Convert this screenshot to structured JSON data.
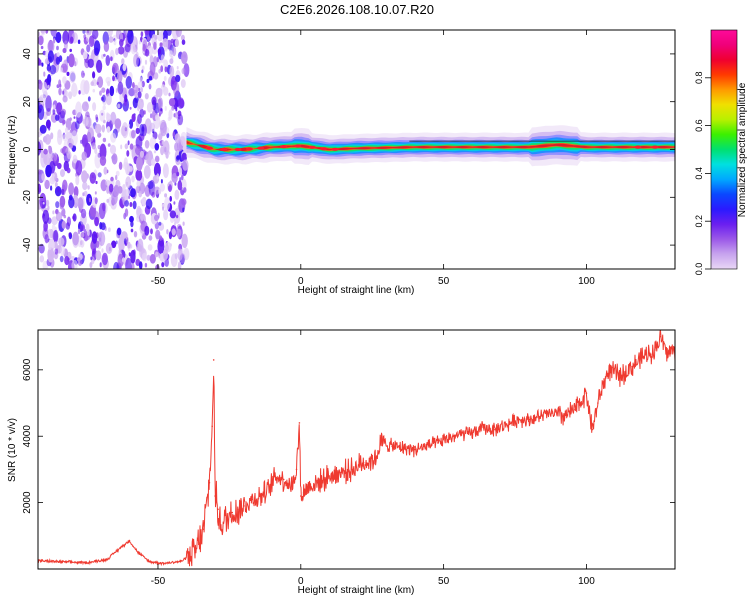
{
  "figure_title": "C2E6.2026.108.10.07.R20",
  "chart_data": [
    {
      "type": "heatmap",
      "panel": "spectrogram",
      "xlabel": "Height of straight line (km)",
      "ylabel": "Frequency (Hz)",
      "xlim": [
        -92,
        131
      ],
      "ylim": [
        -50,
        50
      ],
      "x_ticks": [
        -50,
        0,
        50,
        100
      ],
      "y_ticks": [
        -40,
        -20,
        0,
        20,
        40
      ],
      "colorbar": {
        "label": "Normalized spectral amplitude",
        "range": [
          0,
          1
        ],
        "ticks": [
          0.0,
          0.2,
          0.4,
          0.6,
          0.8
        ],
        "colormap": [
          "#e9d7f6",
          "#c7a3ee",
          "#9b58e8",
          "#6a1ff0",
          "#2b1aff",
          "#0a48ff",
          "#00a8ff",
          "#00e0e0",
          "#00e070",
          "#3cf000",
          "#b8f000",
          "#f0e000",
          "#ff9a00",
          "#ff3a00",
          "#f00030",
          "#f0007a",
          "#ff0a9a"
        ]
      },
      "noise_region_km": [
        -92,
        -40
      ],
      "signal_onset_km": -40,
      "signal_center_hz": [
        [
          -40,
          3
        ],
        [
          -30,
          0
        ],
        [
          -20,
          0
        ],
        [
          -10,
          1
        ],
        [
          0,
          1.5
        ],
        [
          10,
          0
        ],
        [
          20,
          0.5
        ],
        [
          40,
          1
        ],
        [
          60,
          1
        ],
        [
          80,
          1
        ],
        [
          90,
          2
        ],
        [
          100,
          1
        ],
        [
          131,
          1
        ]
      ]
    },
    {
      "type": "line",
      "panel": "snr",
      "xlabel": "Height of straight line (km)",
      "ylabel": "SNR (10 * v/v)",
      "xlim": [
        -92,
        131
      ],
      "ylim": [
        0,
        7200
      ],
      "x_ticks": [
        -50,
        0,
        50,
        100
      ],
      "y_ticks": [
        2000,
        4000,
        6000
      ],
      "series": [
        {
          "name": "SNR",
          "color": "#ef3a30",
          "x": [
            -92,
            -85,
            -75,
            -68,
            -63,
            -60,
            -57,
            -53,
            -48,
            -42,
            -37,
            -34,
            -32,
            -31,
            -30.5,
            -30,
            -29,
            -28,
            -26,
            -24,
            -22,
            -20,
            -17,
            -14,
            -11,
            -9,
            -6,
            -3,
            -1.5,
            -0.5,
            0,
            1,
            3,
            6,
            10,
            14,
            18,
            22,
            26,
            28,
            32,
            36,
            40,
            44,
            48,
            52,
            56,
            60,
            64,
            68,
            72,
            76,
            80,
            84,
            88,
            92,
            96,
            100,
            102,
            104,
            106,
            108,
            112,
            116,
            120,
            124,
            126,
            128,
            131
          ],
          "y": [
            250,
            220,
            190,
            280,
            650,
            850,
            500,
            220,
            170,
            230,
            500,
            1200,
            2600,
            4300,
            6300,
            2200,
            1800,
            1300,
            1500,
            1700,
            1800,
            1900,
            2100,
            2200,
            2400,
            2800,
            2700,
            2500,
            3000,
            4400,
            2200,
            2300,
            2500,
            2600,
            2800,
            2900,
            3000,
            3200,
            3300,
            3800,
            3700,
            3650,
            3600,
            3700,
            3800,
            3950,
            4050,
            4100,
            4250,
            4200,
            4350,
            4500,
            4500,
            4600,
            4700,
            4600,
            4800,
            5300,
            4200,
            5000,
            5600,
            6000,
            5800,
            6100,
            6400,
            6600,
            7000,
            6500,
            6600
          ]
        }
      ]
    }
  ]
}
